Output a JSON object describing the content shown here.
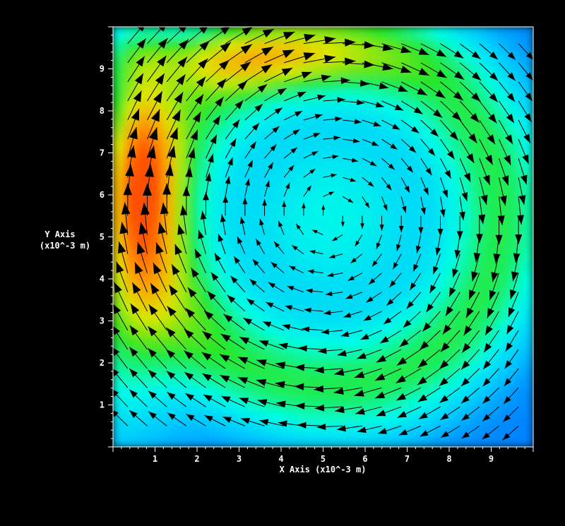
{
  "chart_data": {
    "type": "vector-field",
    "xlabel": "X Axis",
    "xlabel_unit": "(x10^-3 m)",
    "ylabel": "Y Axis",
    "ylabel_unit": "(x10^-3 m)",
    "xlim": [
      0,
      10
    ],
    "ylim": [
      0,
      10
    ],
    "x_ticks": [
      "1",
      "2",
      "3",
      "4",
      "5",
      "6",
      "7",
      "8",
      "9"
    ],
    "y_ticks": [
      "1",
      "2",
      "3",
      "4",
      "5",
      "6",
      "7",
      "8",
      "9"
    ],
    "field": "clockwise lid-driven cavity vortex",
    "vortex_center": [
      5.2,
      5.5
    ],
    "colormap": [
      "#0000ff",
      "#00ffff",
      "#00ff00",
      "#ffff00",
      "#ff6000"
    ],
    "background": "#000000"
  }
}
